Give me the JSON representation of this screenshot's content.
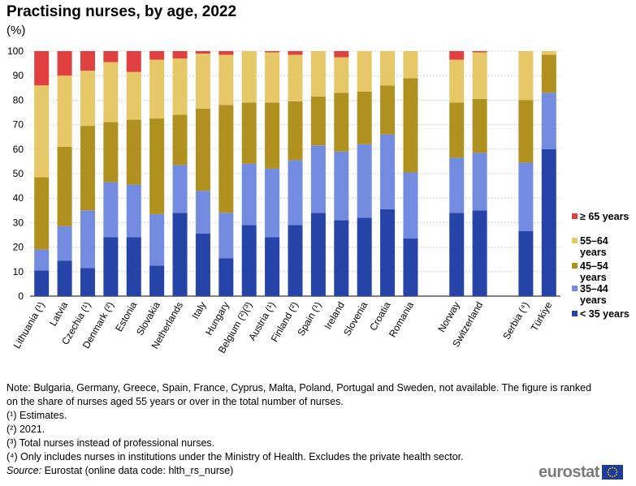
{
  "chart_data": {
    "type": "bar",
    "stacked": true,
    "title": "Practising nurses, by age, 2022",
    "ylabel": "(%)",
    "ylim": [
      0,
      100
    ],
    "yticks": [
      0,
      10,
      20,
      30,
      40,
      50,
      60,
      70,
      80,
      90,
      100
    ],
    "grid": true,
    "legend_position": "right",
    "categories": [
      "Lithuania (¹)",
      "Latvia",
      "Czechia (¹)",
      "Denmark (²)",
      "Estonia",
      "Slovakia",
      "Netherlands",
      "Italy",
      "Hungary",
      "Belgium (²)(³)",
      "Austria (¹)",
      "Finland (²)",
      "Spain (¹)",
      "Ireland",
      "Slovenia",
      "Croatia",
      "Romania",
      "",
      "Norway",
      "Switzerland",
      "",
      "Serbia (⁴)",
      "Türkiye"
    ],
    "series": [
      {
        "name": "< 35 years",
        "color": "#2644a7",
        "values": [
          10.5,
          14.5,
          11.5,
          24,
          24,
          12.5,
          34,
          25.5,
          15.5,
          29,
          24,
          29,
          34,
          31,
          32,
          35.5,
          23.5,
          null,
          34,
          35,
          null,
          26.5,
          60
        ]
      },
      {
        "name": "35–44 years",
        "color": "#738ce0",
        "values": [
          8.5,
          14,
          23.5,
          22.5,
          21.5,
          21,
          19.5,
          17.5,
          18.5,
          25,
          28,
          26.5,
          27.5,
          28,
          30,
          30.5,
          27,
          null,
          22.5,
          23.5,
          null,
          28,
          23
        ]
      },
      {
        "name": "45–54 years",
        "color": "#b09120",
        "values": [
          29.5,
          32.5,
          34.5,
          24.5,
          26.5,
          39,
          20.5,
          33.5,
          44,
          25,
          27,
          24,
          20,
          24,
          21.5,
          20,
          38.5,
          null,
          22.5,
          22,
          null,
          25.5,
          15.5
        ]
      },
      {
        "name": "55–64 years",
        "color": "#e6c868",
        "values": [
          37.5,
          29,
          22.5,
          24.5,
          19.5,
          24,
          23,
          22.5,
          20.5,
          21,
          20.5,
          19,
          18.5,
          14.5,
          16.5,
          14,
          11,
          null,
          17.5,
          19,
          null,
          20,
          1.5
        ]
      },
      {
        "name": "≥ 65 years",
        "color": "#e04040",
        "values": [
          14,
          10,
          8,
          4.5,
          8.5,
          3.5,
          3,
          1,
          1.5,
          0,
          0.5,
          1.5,
          0,
          2.5,
          0,
          0,
          0,
          null,
          3.5,
          0.5,
          null,
          0,
          0
        ]
      }
    ],
    "legend": [
      {
        "label_lines": [
          "≥ 65 years"
        ],
        "color": "#e04040"
      },
      {
        "label_lines": [
          "55–64",
          "years"
        ],
        "color": "#e6c868"
      },
      {
        "label_lines": [
          "45–54",
          "years"
        ],
        "color": "#b09120"
      },
      {
        "label_lines": [
          "35–44",
          "years"
        ],
        "color": "#738ce0"
      },
      {
        "label_lines": [
          "< 35 years"
        ],
        "color": "#2644a7"
      }
    ]
  },
  "header": {
    "title": "Practising nurses, by age, 2022",
    "unit": "(%)"
  },
  "notes": {
    "main": "Note: Bulgaria, Germany, Greece, Spain, France, Cyprus, Malta, Poland, Portugal and Sweden, not available. The figure is ranked on the share of nurses aged 55 years or over in the total number of nurses.",
    "fn1": "(¹) Estimates.",
    "fn2": "(²) 2021.",
    "fn3": "(³) Total nurses instead of professional nurses.",
    "fn4": "(⁴) Only includes nurses in institutions under the Ministry of Health. Excludes the private health sector.",
    "source_label": "Source:",
    "source_text": " Eurostat (online data code: hlth_rs_nurse)"
  },
  "logo": {
    "text": "eurostat",
    "flag_color": "#1d3b9a",
    "star_color": "#ffd200"
  }
}
